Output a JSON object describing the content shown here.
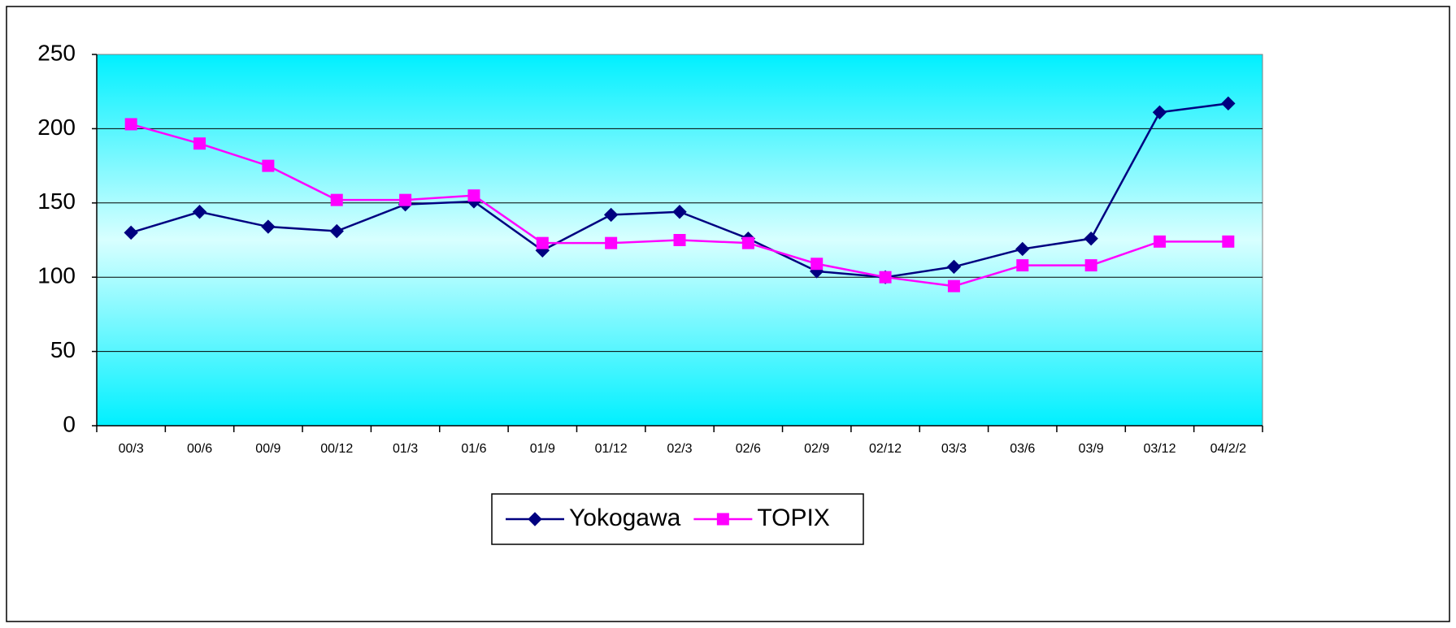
{
  "chart_data": {
    "type": "line",
    "categories": [
      "00/3",
      "00/6",
      "00/9",
      "00/12",
      "01/3",
      "01/6",
      "01/9",
      "01/12",
      "02/3",
      "02/6",
      "02/9",
      "02/12",
      "03/3",
      "03/6",
      "03/9",
      "03/12",
      "04/2/2"
    ],
    "series": [
      {
        "name": "Yokogawa",
        "color": "#000080",
        "marker": "diamond",
        "values": [
          130,
          144,
          134,
          131,
          149,
          151,
          118,
          142,
          144,
          126,
          104,
          100,
          107,
          119,
          126,
          211,
          217
        ]
      },
      {
        "name": "TOPIX",
        "color": "#ff00ff",
        "marker": "square",
        "values": [
          203,
          190,
          175,
          152,
          152,
          155,
          123,
          123,
          125,
          123,
          109,
          100,
          94,
          108,
          108,
          124,
          124
        ]
      }
    ],
    "ylim": [
      0,
      250
    ],
    "yticks": [
      0,
      50,
      100,
      150,
      200,
      250
    ],
    "grid": true,
    "legend": "bottom"
  }
}
